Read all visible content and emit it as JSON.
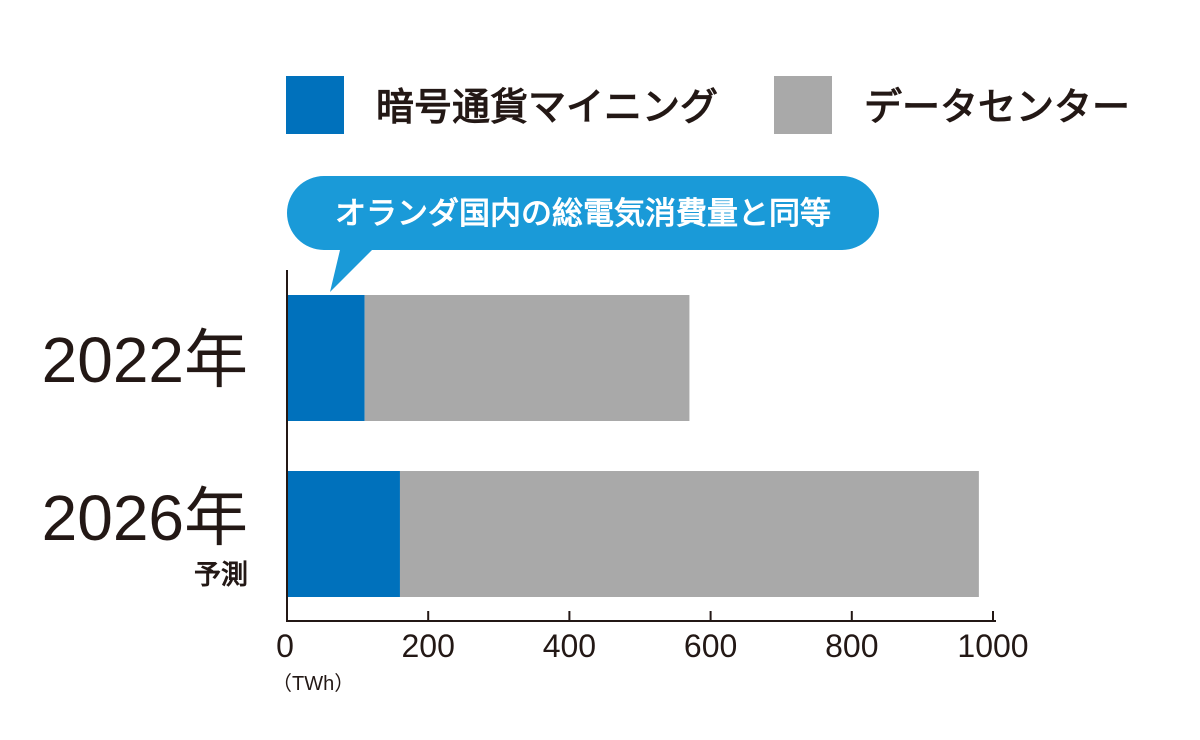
{
  "chart_data": {
    "type": "bar",
    "orientation": "horizontal",
    "stacked": true,
    "categories": [
      "2022年",
      "2026年"
    ],
    "category_notes": [
      "",
      "予測"
    ],
    "series": [
      {
        "name": "暗号通貨マイニング",
        "color": "#0071bc",
        "values": [
          110,
          160
        ]
      },
      {
        "name": "データセンター",
        "color": "#a9a9a9",
        "values": [
          460,
          820
        ]
      }
    ],
    "xlim": [
      0,
      1000
    ],
    "xticks": [
      0,
      200,
      400,
      600,
      800,
      1000
    ],
    "xunit": "（TWh）",
    "grid": false,
    "legend_position": "top",
    "annotation": {
      "text": "オランダ国内の総電気消費量と同等",
      "target_category": "2022年",
      "target_series": "暗号通貨マイニング",
      "color": "#1a9ad8"
    }
  }
}
